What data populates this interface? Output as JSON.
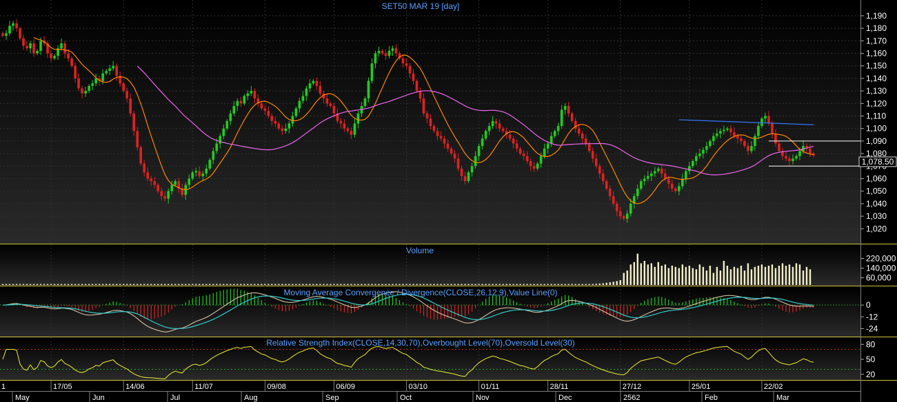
{
  "chart_data": {
    "type": "candlestick",
    "title": "SET50 MAR 19   [day]",
    "interval": "day",
    "price": {
      "ylim": [
        1013,
        1196
      ],
      "y_ticks": [
        1020,
        1030,
        1040,
        1050,
        1060,
        1070,
        1080,
        1090,
        1100,
        1110,
        1120,
        1130,
        1140,
        1150,
        1160,
        1170,
        1180,
        1190
      ],
      "last_price": "1,078.50",
      "closes": [
        1174,
        1176,
        1182,
        1184,
        1180,
        1172,
        1166,
        1164,
        1168,
        1160,
        1162,
        1170,
        1168,
        1160,
        1156,
        1158,
        1164,
        1168,
        1160,
        1156,
        1150,
        1140,
        1132,
        1128,
        1130,
        1134,
        1136,
        1140,
        1138,
        1144,
        1146,
        1148,
        1150,
        1142,
        1136,
        1130,
        1124,
        1112,
        1098,
        1085,
        1072,
        1065,
        1060,
        1058,
        1055,
        1050,
        1046,
        1044,
        1050,
        1055,
        1058,
        1052,
        1047,
        1055,
        1060,
        1065,
        1066,
        1062,
        1064,
        1068,
        1075,
        1082,
        1088,
        1094,
        1100,
        1106,
        1112,
        1118,
        1122,
        1120,
        1126,
        1128,
        1130,
        1124,
        1120,
        1116,
        1114,
        1110,
        1106,
        1104,
        1100,
        1098,
        1100,
        1104,
        1110,
        1116,
        1122,
        1126,
        1132,
        1136,
        1138,
        1134,
        1128,
        1124,
        1120,
        1118,
        1112,
        1106,
        1104,
        1100,
        1098,
        1095,
        1104,
        1112,
        1118,
        1124,
        1138,
        1152,
        1160,
        1162,
        1160,
        1158,
        1162,
        1164,
        1160,
        1156,
        1152,
        1150,
        1144,
        1138,
        1130,
        1124,
        1112,
        1108,
        1102,
        1098,
        1094,
        1092,
        1088,
        1084,
        1080,
        1076,
        1068,
        1062,
        1058,
        1065,
        1070,
        1078,
        1086,
        1092,
        1098,
        1102,
        1106,
        1104,
        1100,
        1098,
        1095,
        1092,
        1088,
        1084,
        1080,
        1078,
        1074,
        1070,
        1068,
        1072,
        1078,
        1084,
        1088,
        1094,
        1098,
        1102,
        1115,
        1118,
        1112,
        1106,
        1100,
        1096,
        1092,
        1088,
        1082,
        1076,
        1070,
        1064,
        1058,
        1052,
        1046,
        1040,
        1034,
        1030,
        1028,
        1032,
        1040,
        1046,
        1052,
        1058,
        1060,
        1062,
        1064,
        1066,
        1068,
        1064,
        1060,
        1056,
        1052,
        1050,
        1054,
        1060,
        1066,
        1070,
        1074,
        1078,
        1080,
        1083,
        1086,
        1090,
        1094,
        1096,
        1098,
        1099,
        1100,
        1097,
        1094,
        1092,
        1090,
        1086,
        1082,
        1086,
        1094,
        1102,
        1108,
        1110,
        1104,
        1096,
        1088,
        1082,
        1078,
        1076,
        1074,
        1076,
        1078,
        1082,
        1086,
        1084,
        1080,
        1078.5
      ],
      "moving_averages": [
        "10-period",
        "40-period"
      ],
      "trendline_label": ""
    },
    "volume": {
      "label": "Volume",
      "y_ticks": [
        "220,000",
        "140,000",
        "60,000"
      ],
      "values": [
        8000,
        8000,
        8000,
        8000,
        8000,
        8000,
        8000,
        8000,
        8000,
        8000,
        8000,
        8000,
        8000,
        8000,
        8000,
        8000,
        8000,
        8000,
        8000,
        8000,
        8000,
        8000,
        8000,
        8000,
        8000,
        8000,
        8000,
        8000,
        8000,
        8000,
        8000,
        8000,
        8000,
        8000,
        8000,
        8000,
        8000,
        8000,
        8000,
        8000,
        8000,
        8000,
        8000,
        8000,
        8000,
        8000,
        8000,
        8000,
        8000,
        8000,
        8000,
        8000,
        8000,
        8000,
        8000,
        8000,
        8000,
        8000,
        8000,
        8000,
        8000,
        8000,
        8000,
        8000,
        8000,
        8000,
        8000,
        8000,
        8000,
        8000,
        8000,
        8000,
        8000,
        8000,
        8000,
        8000,
        8000,
        8000,
        8000,
        8000,
        8000,
        8000,
        8000,
        8000,
        8000,
        8000,
        8000,
        8000,
        8000,
        8000,
        8000,
        8000,
        8000,
        8000,
        8000,
        8000,
        8000,
        8000,
        8000,
        8000,
        8000,
        8000,
        8000,
        8000,
        8000,
        8000,
        8000,
        8000,
        8000,
        8000,
        8000,
        8000,
        8000,
        8000,
        8000,
        8000,
        8000,
        8000,
        8000,
        8000,
        8000,
        8000,
        8000,
        8000,
        8000,
        8000,
        8000,
        8000,
        8000,
        8000,
        8000,
        8000,
        8000,
        8000,
        8000,
        8000,
        8000,
        8000,
        8000,
        8000,
        8000,
        8000,
        8000,
        8000,
        8000,
        8000,
        8000,
        8000,
        8000,
        8000,
        8000,
        8000,
        8000,
        8000,
        8000,
        8000,
        8000,
        8000,
        8000,
        8000,
        8000,
        8000,
        8000,
        8000,
        8000,
        8000,
        8000,
        8000,
        8000,
        8000,
        8000,
        8000,
        10000,
        12000,
        14000,
        18000,
        22000,
        26000,
        32000,
        40000,
        100000,
        120000,
        170000,
        190000,
        260000,
        180000,
        200000,
        170000,
        180000,
        150000,
        190000,
        160000,
        170000,
        140000,
        160000,
        150000,
        140000,
        170000,
        150000,
        160000,
        140000,
        130000,
        170000,
        150000,
        120000,
        160000,
        100000,
        150000,
        120000,
        200000,
        160000,
        130000,
        150000,
        140000,
        160000,
        120000,
        180000,
        130000,
        150000,
        160000,
        170000,
        150000,
        160000,
        170000,
        140000,
        160000,
        180000,
        160000,
        170000,
        150000,
        180000,
        170000,
        120000,
        150000,
        130000
      ],
      "ylim": [
        0,
        240000
      ]
    },
    "macd": {
      "label": "Moving Average Convergence / Divergence(CLOSE,26,12,9),Value Line(0)",
      "y_ticks": [
        "0",
        "-12",
        "-24"
      ],
      "ylim": [
        -30,
        12
      ]
    },
    "rsi": {
      "label": "Relative Strength Index(CLOSE,14,30,70),Overbought Level(70),Oversold Level(30)",
      "y_ticks": [
        "80",
        "50",
        "20"
      ],
      "ylim": [
        10,
        90
      ],
      "overbought": 70,
      "oversold": 30
    },
    "x_axis": {
      "dates": [
        "17/05",
        "14/06",
        "11/07",
        "09/08",
        "06/09",
        "03/10",
        "01/11",
        "28/11",
        "27/12",
        "25/01",
        "22/02"
      ],
      "months": [
        "May",
        "Jun",
        "Jul",
        "Aug",
        "Sep",
        "Oct",
        "Nov",
        "Dec",
        "2562",
        "Feb",
        "Mar"
      ],
      "first_fragment": "1"
    }
  },
  "colors": {
    "up": "#22cc22",
    "down": "#dd2222",
    "ma_short": "#ff8800",
    "ma_long": "#ee66ee",
    "trend": "#3377ff",
    "volume": "#f5f0c8",
    "rsi_line": "#eeee33",
    "macd_line": "#e8d0b0",
    "signal_line": "#33cccc",
    "panel_border": "#d4c23a",
    "title": "#5aa0ff",
    "axis_text": "#ffffff",
    "grid": "#303030"
  }
}
